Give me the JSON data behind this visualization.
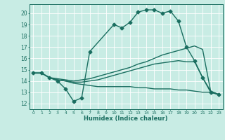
{
  "title": "",
  "xlabel": "Humidex (Indice chaleur)",
  "background_color": "#c8ece4",
  "grid_color": "#ffffff",
  "line_color": "#1a6e60",
  "xlim": [
    -0.5,
    23.5
  ],
  "ylim": [
    11.5,
    20.8
  ],
  "yticks": [
    12,
    13,
    14,
    15,
    16,
    17,
    18,
    19,
    20
  ],
  "xticks": [
    0,
    1,
    2,
    3,
    4,
    5,
    6,
    7,
    8,
    9,
    10,
    11,
    12,
    13,
    14,
    15,
    16,
    17,
    18,
    19,
    20,
    21,
    22,
    23
  ],
  "lines": [
    {
      "x": [
        0,
        1,
        2,
        3,
        4,
        5,
        6,
        7,
        10,
        11,
        12,
        13,
        14,
        15,
        16,
        17,
        18,
        19,
        20,
        21,
        22,
        23
      ],
      "y": [
        14.7,
        14.7,
        14.3,
        14.0,
        13.3,
        12.2,
        12.5,
        16.6,
        19.0,
        18.7,
        19.2,
        20.1,
        20.3,
        20.3,
        20.0,
        20.2,
        19.3,
        17.0,
        15.8,
        14.3,
        13.0,
        12.8
      ],
      "marker": "D",
      "markersize": 2.5,
      "linewidth": 1.0
    },
    {
      "x": [
        0,
        1,
        2,
        3,
        4,
        5,
        6,
        7,
        8,
        9,
        10,
        11,
        12,
        13,
        14,
        15,
        16,
        17,
        18,
        19,
        20,
        21,
        22,
        23
      ],
      "y": [
        14.7,
        14.7,
        14.3,
        14.2,
        14.1,
        14.0,
        14.1,
        14.2,
        14.4,
        14.6,
        14.8,
        15.0,
        15.2,
        15.5,
        15.7,
        16.0,
        16.3,
        16.5,
        16.7,
        16.9,
        17.1,
        16.8,
        13.1,
        12.8
      ],
      "marker": null,
      "markersize": 0,
      "linewidth": 1.0
    },
    {
      "x": [
        0,
        1,
        2,
        3,
        4,
        5,
        6,
        7,
        8,
        9,
        10,
        11,
        12,
        13,
        14,
        15,
        16,
        17,
        18,
        19,
        20,
        21,
        22,
        23
      ],
      "y": [
        14.7,
        14.7,
        14.3,
        14.1,
        14.0,
        13.8,
        13.7,
        13.6,
        13.5,
        13.5,
        13.5,
        13.5,
        13.5,
        13.4,
        13.4,
        13.3,
        13.3,
        13.3,
        13.2,
        13.2,
        13.1,
        13.0,
        13.0,
        12.8
      ],
      "marker": null,
      "markersize": 0,
      "linewidth": 1.0
    },
    {
      "x": [
        0,
        1,
        2,
        3,
        4,
        5,
        6,
        7,
        8,
        9,
        10,
        11,
        12,
        13,
        14,
        15,
        16,
        17,
        18,
        19,
        20,
        21,
        22,
        23
      ],
      "y": [
        14.7,
        14.7,
        14.3,
        14.1,
        14.0,
        13.9,
        13.9,
        14.0,
        14.1,
        14.3,
        14.5,
        14.7,
        14.9,
        15.1,
        15.3,
        15.5,
        15.6,
        15.7,
        15.8,
        15.7,
        15.7,
        14.3,
        13.1,
        12.8
      ],
      "marker": null,
      "markersize": 0,
      "linewidth": 1.0
    }
  ]
}
